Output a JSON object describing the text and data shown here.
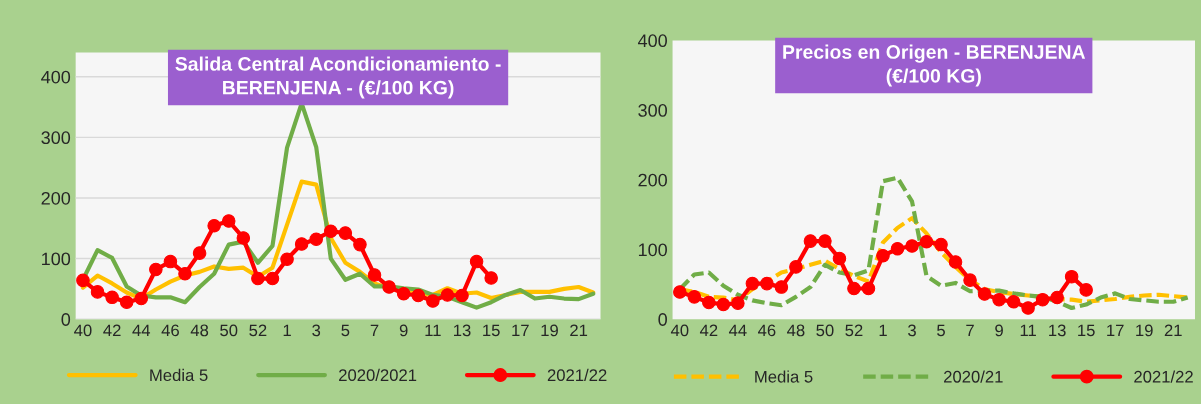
{
  "chart_data": [
    {
      "type": "line",
      "title": "Salida Central Acondicionamiento -\nBERENJENA - (€/100 KG)",
      "categories": [
        "40",
        null,
        "42",
        null,
        "44",
        null,
        "46",
        null,
        "48",
        null,
        "50",
        null,
        "52",
        null,
        "1",
        null,
        "3",
        null,
        "5",
        null,
        "7",
        null,
        "9",
        null,
        "11",
        null,
        "13",
        null,
        "15",
        null,
        "17",
        null,
        "19",
        null,
        "21",
        null
      ],
      "series": [
        {
          "name": "Media 5",
          "color": "#ffc000",
          "line_style": "solid",
          "marker": "none",
          "values": [
            52,
            72,
            59,
            44,
            34,
            49,
            62,
            72,
            78,
            87,
            83,
            85,
            70,
            85,
            156,
            227,
            222,
            134,
            93,
            78,
            59,
            51,
            45,
            42,
            40,
            51,
            42,
            44,
            35,
            40,
            45,
            45,
            45,
            50,
            53,
            44
          ]
        },
        {
          "name": "2020/2021",
          "color": "#70ad47",
          "line_style": "solid",
          "marker": "none",
          "values": [
            65,
            114,
            101,
            54,
            39,
            36,
            36,
            28,
            53,
            75,
            123,
            128,
            93,
            121,
            283,
            356,
            284,
            100,
            65,
            75,
            54,
            54,
            51,
            49,
            40,
            37,
            28,
            19,
            28,
            40,
            48,
            34,
            37,
            34,
            33,
            42
          ]
        },
        {
          "name": "2021/22",
          "color": "#ff0000",
          "line_style": "solid",
          "marker": "circle",
          "values": [
            64,
            45,
            36,
            28,
            34,
            82,
            95,
            75,
            109,
            154,
            162,
            134,
            67,
            67,
            99,
            124,
            132,
            145,
            142,
            123,
            73,
            53,
            42,
            39,
            30,
            40,
            39,
            95,
            68,
            null,
            null,
            null,
            null,
            null,
            null,
            null
          ]
        }
      ],
      "ylim": [
        0,
        440
      ],
      "yticks": [
        0,
        100,
        200,
        300,
        400
      ],
      "grid": "y",
      "legend": "bottom"
    },
    {
      "type": "line",
      "title": "Precios en Origen - BERENJENA\n(€/100 KG)",
      "categories": [
        "40",
        null,
        "42",
        null,
        "44",
        null,
        "46",
        null,
        "48",
        null,
        "50",
        null,
        "52",
        null,
        "1",
        null,
        "3",
        null,
        "5",
        null,
        "7",
        null,
        "9",
        null,
        "11",
        null,
        "13",
        null,
        "15",
        null,
        "17",
        null,
        "19",
        null,
        "21",
        null
      ],
      "series": [
        {
          "name": "Media 5",
          "color": "#ffc000",
          "line_style": "dashed",
          "marker": "none",
          "values": [
            43,
            39,
            32,
            31,
            27,
            43,
            54,
            67,
            72,
            78,
            84,
            72,
            62,
            54,
            110,
            131,
            145,
            123,
            96,
            75,
            56,
            43,
            39,
            36,
            34,
            32,
            29,
            28,
            25,
            27,
            29,
            32,
            34,
            35,
            33,
            31
          ]
        },
        {
          "name": "2020/21",
          "color": "#70ad47",
          "line_style": "dashed",
          "marker": "none",
          "values": [
            43,
            64,
            67,
            48,
            35,
            27,
            23,
            20,
            32,
            46,
            78,
            67,
            63,
            70,
            198,
            203,
            169,
            62,
            48,
            52,
            40,
            41,
            41,
            37,
            34,
            32,
            25,
            16,
            21,
            31,
            37,
            29,
            27,
            25,
            25,
            31
          ]
        },
        {
          "name": "2021/22",
          "color": "#ff0000",
          "line_style": "solid",
          "marker": "circle",
          "values": [
            39,
            32,
            24,
            21,
            23,
            51,
            51,
            46,
            75,
            112,
            112,
            87,
            44,
            44,
            91,
            101,
            105,
            111,
            107,
            82,
            56,
            36,
            28,
            25,
            16,
            28,
            31,
            61,
            42,
            null,
            null,
            null,
            null,
            null,
            null,
            null
          ]
        }
      ],
      "ylim": [
        0,
        400
      ],
      "yticks": [
        0,
        100,
        200,
        300,
        400
      ],
      "grid": false,
      "legend": "bottom"
    }
  ]
}
